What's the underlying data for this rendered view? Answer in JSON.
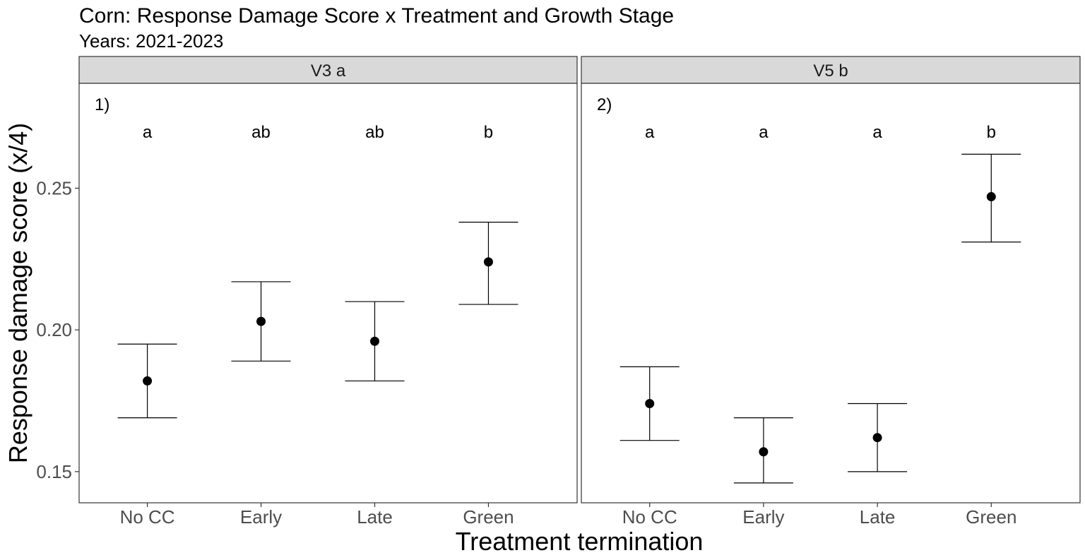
{
  "chart_data": {
    "type": "scatter",
    "title": "Corn: Response Damage Score x Treatment and Growth Stage",
    "subtitle": "Years: 2021-2023",
    "xlabel": "Treatment termination",
    "ylabel": "Response damage score (x/4)",
    "ylim": [
      0.139,
      0.287
    ],
    "yticks": [
      0.15,
      0.2,
      0.25
    ],
    "ytick_labels": [
      "0.15",
      "0.20",
      "0.25"
    ],
    "categories": [
      "No CC",
      "Early",
      "Late",
      "Green"
    ],
    "grid": false,
    "panels": [
      {
        "strip": "V3  a",
        "tag": "1)",
        "means": [
          0.182,
          0.203,
          0.196,
          0.224
        ],
        "lower": [
          0.169,
          0.189,
          0.182,
          0.209
        ],
        "upper": [
          0.195,
          0.217,
          0.21,
          0.238
        ],
        "letters": [
          "a",
          "ab",
          "ab",
          "b"
        ]
      },
      {
        "strip": "V5  b",
        "tag": "2)",
        "means": [
          0.174,
          0.157,
          0.162,
          0.247
        ],
        "lower": [
          0.161,
          0.146,
          0.15,
          0.231
        ],
        "upper": [
          0.187,
          0.169,
          0.174,
          0.262
        ],
        "letters": [
          "a",
          "a",
          "a",
          "b"
        ]
      }
    ]
  }
}
